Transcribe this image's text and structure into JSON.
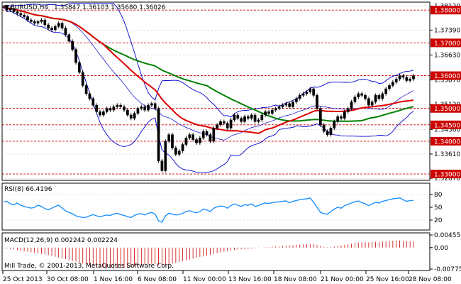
{
  "header": {
    "symbol_tf": "EURUSD,H4",
    "ohlc": "1.35847 1.36103 1.35680 1.36026"
  },
  "copyright": "Mill Trade, © 2001-2013, MetaQuotes Software Corp.",
  "colors": {
    "background": "#ffffff",
    "grid": "#c0c0c0",
    "price": "#000000",
    "bollinger": "#0000cc",
    "ma_fast": "#dd0000",
    "ma_slow": "#008000",
    "level_line": "#cc0000",
    "level_label_bg": "#cc0000",
    "rsi": "#1e90ff",
    "macd_hist": "#cc0000"
  },
  "chart_data": [
    {
      "type": "candlestick",
      "panel": "main",
      "title": "EURUSD,H4",
      "ylim": [
        1.3285,
        1.382
      ],
      "y_ticks": [
        "1.38120",
        "1.37390",
        "1.36630",
        "1.35870",
        "1.35120",
        "1.34360",
        "1.33610",
        "1.32870"
      ],
      "levels": [
        "1.38000",
        "1.37000",
        "1.36000",
        "1.35000",
        "1.34500",
        "1.34000",
        "1.33000"
      ],
      "x_tick_labels": [
        "25 Oct 2013",
        "30 Oct 08:00",
        "1 Nov 16:00",
        "6 Nov 08:00",
        "11 Nov 00:00",
        "13 Nov 16:00",
        "18 Nov 08:00",
        "21 Nov 00:00",
        "25 Nov 16:00",
        "28 Nov 08:00"
      ],
      "close": [
        1.381,
        1.38,
        1.3805,
        1.3795,
        1.379,
        1.3785,
        1.378,
        1.377,
        1.3765,
        1.376,
        1.3765,
        1.377,
        1.3755,
        1.3745,
        1.374,
        1.375,
        1.376,
        1.3745,
        1.3725,
        1.3705,
        1.368,
        1.364,
        1.361,
        1.357,
        1.3545,
        1.353,
        1.351,
        1.349,
        1.348,
        1.349,
        1.35,
        1.3495,
        1.3505,
        1.351,
        1.3505,
        1.3495,
        1.348,
        1.347,
        1.3485,
        1.35,
        1.3505,
        1.3495,
        1.351,
        1.3515,
        1.35,
        1.334,
        1.331,
        1.34,
        1.342,
        1.338,
        1.336,
        1.337,
        1.339,
        1.341,
        1.342,
        1.3405,
        1.3395,
        1.341,
        1.343,
        1.342,
        1.34,
        1.344,
        1.345,
        1.346,
        1.3455,
        1.344,
        1.3465,
        1.348,
        1.347,
        1.346,
        1.3475,
        1.347,
        1.348,
        1.346,
        1.3465,
        1.348,
        1.349,
        1.3485,
        1.3495,
        1.35,
        1.3505,
        1.351,
        1.3515,
        1.3505,
        1.352,
        1.353,
        1.354,
        1.3545,
        1.355,
        1.356,
        1.354,
        1.35,
        1.345,
        1.343,
        1.342,
        1.344,
        1.346,
        1.3475,
        1.347,
        1.349,
        1.35,
        1.352,
        1.3535,
        1.3545,
        1.354,
        1.353,
        1.351,
        1.352,
        1.354,
        1.353,
        1.3545,
        1.356,
        1.357,
        1.358,
        1.359,
        1.36,
        1.3595,
        1.3585,
        1.359,
        1.36
      ],
      "overlays": [
        "Bollinger Bands",
        "Moving Average (fast, red)",
        "Moving Average (slow, green)"
      ]
    },
    {
      "type": "line",
      "panel": "rsi",
      "title": "RSI(8) 66.4196",
      "ylim": [
        0,
        100
      ],
      "y_ticks": [
        "80",
        "50",
        "20"
      ],
      "levels": [
        80,
        20
      ],
      "values": [
        63,
        64,
        58,
        56,
        60,
        55,
        52,
        50,
        48,
        50,
        55,
        52,
        47,
        44,
        48,
        52,
        55,
        48,
        42,
        38,
        35,
        30,
        28,
        26,
        27,
        30,
        33,
        30,
        28,
        30,
        32,
        31,
        34,
        36,
        33,
        31,
        28,
        26,
        31,
        34,
        35,
        32,
        36,
        38,
        34,
        18,
        15,
        30,
        36,
        34,
        32,
        33,
        36,
        40,
        42,
        39,
        37,
        40,
        46,
        44,
        40,
        48,
        51,
        53,
        52,
        48,
        54,
        58,
        55,
        52,
        56,
        55,
        58,
        52,
        54,
        58,
        60,
        59,
        61,
        62,
        63,
        64,
        65,
        61,
        64,
        66,
        68,
        69,
        70,
        72,
        62,
        50,
        38,
        35,
        34,
        40,
        46,
        50,
        48,
        54,
        57,
        60,
        63,
        65,
        61,
        58,
        54,
        58,
        62,
        60,
        64,
        66,
        68,
        70,
        71,
        72,
        68,
        64,
        66,
        66
      ]
    },
    {
      "type": "bar",
      "panel": "macd",
      "title": "MACD(12,26,9) 0.002242 0.002224",
      "ylim": [
        -0.007756,
        0.004556
      ],
      "y_ticks": [
        "0.004556",
        "0.00",
        "-0.007756"
      ],
      "values": [
        -0.0002,
        -0.0003,
        -0.0005,
        -0.0007,
        -0.0009,
        -0.0011,
        -0.0013,
        -0.0015,
        -0.0017,
        -0.0019,
        -0.0021,
        -0.0023,
        -0.0025,
        -0.0027,
        -0.003,
        -0.0033,
        -0.0036,
        -0.0039,
        -0.0042,
        -0.0045,
        -0.0048,
        -0.0051,
        -0.0054,
        -0.0057,
        -0.006,
        -0.0063,
        -0.0066,
        -0.0069,
        -0.0071,
        -0.0073,
        -0.0074,
        -0.0075,
        -0.0076,
        -0.0075,
        -0.0074,
        -0.0073,
        -0.0072,
        -0.007,
        -0.0068,
        -0.0066,
        -0.0064,
        -0.0062,
        -0.006,
        -0.0058,
        -0.006,
        -0.0064,
        -0.0066,
        -0.0064,
        -0.0061,
        -0.0058,
        -0.0055,
        -0.0052,
        -0.0049,
        -0.0046,
        -0.0043,
        -0.004,
        -0.0037,
        -0.0034,
        -0.0031,
        -0.0028,
        -0.0026,
        -0.0023,
        -0.002,
        -0.0017,
        -0.0015,
        -0.0013,
        -0.0011,
        -0.0009,
        -0.0007,
        -0.0006,
        -0.0005,
        -0.0004,
        -0.0003,
        -0.0002,
        -0.0001,
        0.0,
        0.0001,
        0.0002,
        0.0003,
        0.0004,
        0.0005,
        0.0006,
        0.0007,
        0.0008,
        0.0009,
        0.001,
        0.0011,
        0.0012,
        0.0013,
        0.0014,
        0.0013,
        0.001,
        0.0006,
        0.0003,
        0.0001,
        0.0002,
        0.0004,
        0.0006,
        0.0008,
        0.001,
        0.0012,
        0.0014,
        0.0016,
        0.0018,
        0.0019,
        0.002,
        0.0019,
        0.002,
        0.0021,
        0.0021,
        0.0022,
        0.0023,
        0.0024,
        0.0025,
        0.0026,
        0.0026,
        0.0025,
        0.0024,
        0.0023,
        0.0022
      ]
    }
  ]
}
